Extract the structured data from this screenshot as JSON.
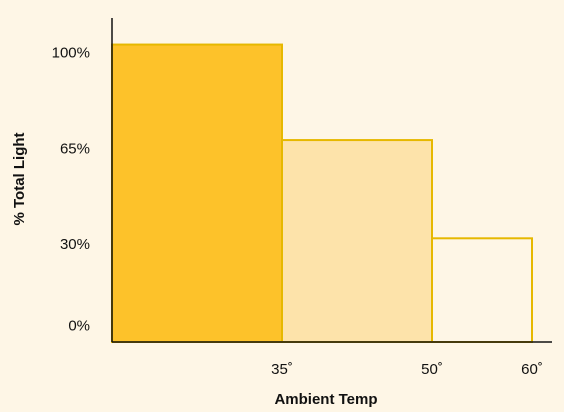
{
  "chart_data": {
    "type": "bar",
    "xlabel": "Ambient Temp",
    "ylabel": "% Total Light",
    "y_ticks": [
      {
        "value": 100,
        "label": "100%"
      },
      {
        "value": 65,
        "label": "65%"
      },
      {
        "value": 30,
        "label": "30%"
      },
      {
        "value": 0,
        "label": "0%"
      }
    ],
    "x_ticks": [
      {
        "value": 35,
        "label": "35˚"
      },
      {
        "value": 50,
        "label": "50˚"
      },
      {
        "value": 60,
        "label": "60˚"
      }
    ],
    "xlim": [
      18,
      62
    ],
    "ylim": [
      -6,
      112
    ],
    "bins": [
      {
        "x_start": 18,
        "x_end": 35,
        "value": 103,
        "fill": "#FDC22A",
        "stroke": "#E6B800"
      },
      {
        "x_start": 35,
        "x_end": 50,
        "value": 68,
        "fill": "#FDE3AA",
        "stroke": "#E6B800"
      },
      {
        "x_start": 50,
        "x_end": 60,
        "value": 32,
        "fill": "#FEF6E6",
        "stroke": "#E6B800"
      }
    ],
    "grid": false,
    "colors": {
      "background": "#FEF6E6",
      "axis": "#111111"
    }
  }
}
